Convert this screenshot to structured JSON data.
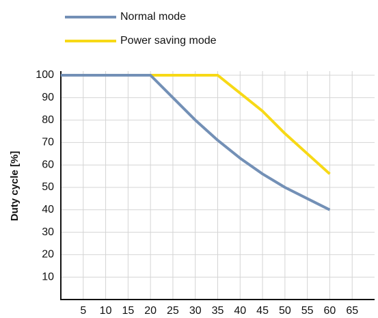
{
  "chart_data": {
    "type": "line",
    "ylabel": "Duty cycle [%]",
    "series": [
      {
        "name": "Normal mode",
        "color": "#7390b6",
        "x": [
          0,
          20,
          25,
          30,
          35,
          40,
          45,
          50,
          55,
          60
        ],
        "values": [
          100,
          100,
          90,
          80,
          71,
          63,
          56,
          50,
          45,
          40
        ]
      },
      {
        "name": "Power saving mode",
        "color": "#f7d916",
        "x": [
          0,
          35,
          40,
          45,
          50,
          55,
          60
        ],
        "values": [
          100,
          100,
          92,
          84,
          74,
          65,
          56
        ]
      }
    ],
    "xlim": [
      0,
      70
    ],
    "ylim": [
      0,
      100
    ],
    "xticks": [
      5,
      10,
      15,
      20,
      25,
      30,
      35,
      40,
      45,
      50,
      55,
      60,
      65
    ],
    "yticks": [
      10,
      20,
      30,
      40,
      50,
      60,
      70,
      80,
      90,
      100
    ],
    "grid": true
  }
}
